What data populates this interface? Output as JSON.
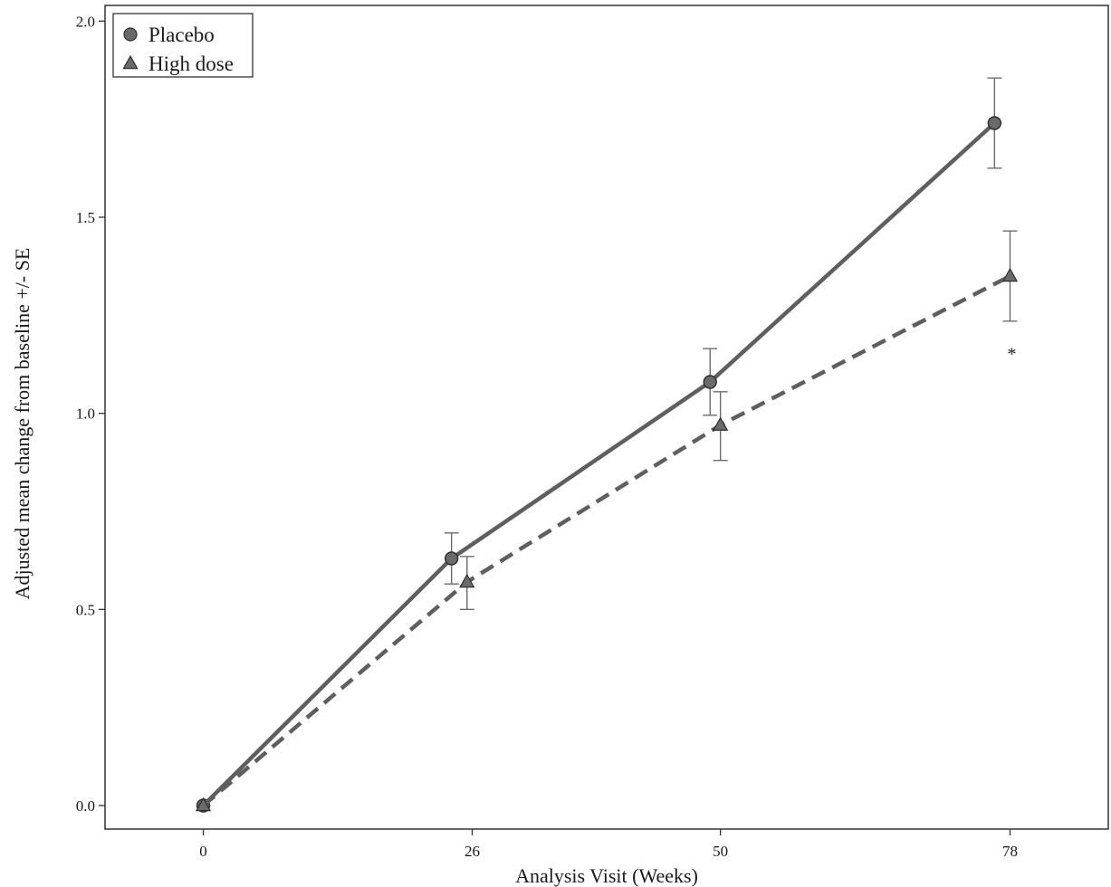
{
  "chart_data": {
    "type": "line",
    "title": "",
    "xlabel": "Analysis Visit (Weeks)",
    "ylabel": "Adjusted mean change from baseline +/- SE",
    "xlim": [
      -9.5,
      87.5
    ],
    "ylim": [
      -0.06,
      2.04
    ],
    "xticks": [
      0,
      26,
      50,
      78
    ],
    "xtick_labels": [
      "0",
      "26",
      "50",
      "78"
    ],
    "yticks": [
      0.0,
      0.5,
      1.0,
      1.5,
      2.0
    ],
    "ytick_labels": [
      "0.0",
      "0.5",
      "1.0",
      "1.5",
      "2.0"
    ],
    "grid": false,
    "legend_position": "top-left",
    "series": [
      {
        "name": "Placebo",
        "marker": "circle",
        "line_style": "solid",
        "color": "#5f5f5f",
        "x": [
          0,
          24,
          49,
          76.5
        ],
        "y": [
          0.0,
          0.63,
          1.08,
          1.74
        ],
        "se_low": [
          0.0,
          0.565,
          0.995,
          1.625
        ],
        "se_high": [
          0.0,
          0.695,
          1.165,
          1.855
        ]
      },
      {
        "name": "High dose",
        "marker": "triangle",
        "line_style": "dashed",
        "color": "#5f5f5f",
        "x": [
          0,
          25.5,
          50,
          78
        ],
        "y": [
          0.0,
          0.57,
          0.97,
          1.35
        ],
        "se_low": [
          0.0,
          0.5,
          0.88,
          1.235
        ],
        "se_high": [
          0.0,
          0.635,
          1.055,
          1.465
        ]
      }
    ],
    "annotations": [
      {
        "text": "*",
        "x": 78,
        "y": 1.16
      }
    ]
  }
}
